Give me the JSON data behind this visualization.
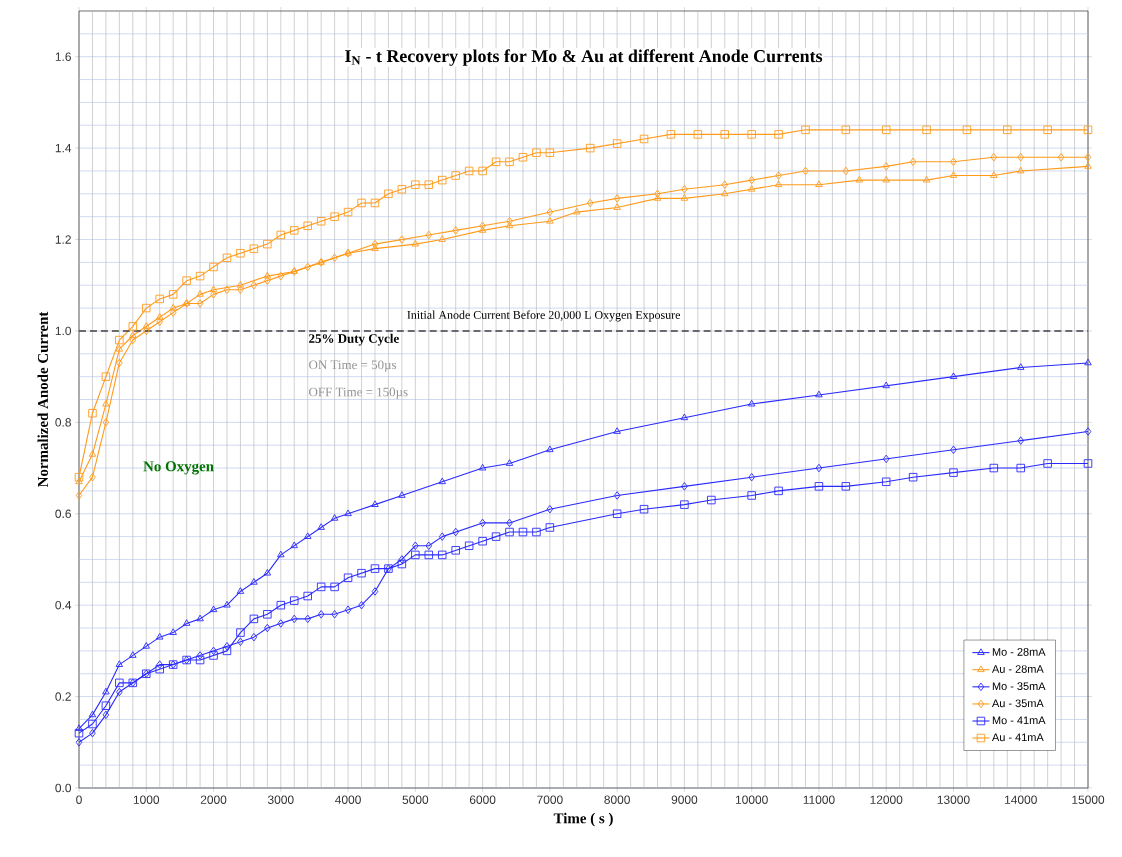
{
  "chart_data": {
    "type": "line",
    "title": "I$_{N}$ - t  Recovery plots for Mo & Au at different Anode Currents",
    "xlabel": "Time ( s )",
    "ylabel": "Normalized Anode Current",
    "xlim": [
      0,
      15000
    ],
    "ylim": [
      0,
      1.7
    ],
    "xticks": [
      0,
      {
        "value": 200,
        "label": null
      },
      {
        "value": 400,
        "label": null
      },
      {
        "value": 600,
        "label": null
      },
      {
        "value": 800,
        "label": null
      },
      1000,
      {
        "value": 1200,
        "label": null
      },
      {
        "value": 1400,
        "label": null
      },
      {
        "value": 1600,
        "label": null
      },
      {
        "value": 1800,
        "label": null
      },
      2000,
      {
        "value": 2200,
        "label": null
      },
      {
        "value": 2400,
        "label": null
      },
      {
        "value": 2600,
        "label": null
      },
      {
        "value": 2800,
        "label": null
      },
      3000,
      {
        "value": 3200,
        "label": null
      },
      {
        "value": 3400,
        "label": null
      },
      {
        "value": 3600,
        "label": null
      },
      {
        "value": 3800,
        "label": null
      },
      4000,
      {
        "value": 4200,
        "label": null
      },
      {
        "value": 4400,
        "label": null
      },
      {
        "value": 4600,
        "label": null
      },
      {
        "value": 4800,
        "label": null
      },
      5000,
      {
        "value": 5200,
        "label": null
      },
      {
        "value": 5400,
        "label": null
      },
      {
        "value": 5600,
        "label": null
      },
      {
        "value": 5800,
        "label": null
      },
      6000,
      {
        "value": 6200,
        "label": null
      },
      {
        "value": 6400,
        "label": null
      },
      {
        "value": 6600,
        "label": null
      },
      {
        "value": 6800,
        "label": null
      },
      7000,
      {
        "value": 7200,
        "label": null
      },
      {
        "value": 7400,
        "label": null
      },
      {
        "value": 7600,
        "label": null
      },
      {
        "value": 7800,
        "label": null
      },
      8000,
      {
        "value": 8200,
        "label": null
      },
      {
        "value": 8400,
        "label": null
      },
      {
        "value": 8600,
        "label": null
      },
      {
        "value": 8800,
        "label": null
      },
      9000,
      {
        "value": 9200,
        "label": null
      },
      {
        "value": 9400,
        "label": null
      },
      {
        "value": 9600,
        "label": null
      },
      {
        "value": 9800,
        "label": null
      },
      10000,
      {
        "value": 10200,
        "label": null
      },
      {
        "value": 10400,
        "label": null
      },
      {
        "value": 10600,
        "label": null
      },
      {
        "value": 10800,
        "label": null
      },
      11000,
      {
        "value": 11200,
        "label": null
      },
      {
        "value": 11400,
        "label": null
      },
      {
        "value": 11600,
        "label": null
      },
      {
        "value": 11800,
        "label": null
      },
      12000,
      {
        "value": 12200,
        "label": null
      },
      {
        "value": 12400,
        "label": null
      },
      {
        "value": 12600,
        "label": null
      },
      {
        "value": 12800,
        "label": null
      },
      13000,
      {
        "value": 13200,
        "label": null
      },
      {
        "value": 13400,
        "label": null
      },
      {
        "value": 13600,
        "label": null
      },
      {
        "value": 13800,
        "label": null
      },
      14000,
      {
        "value": 14200,
        "label": null
      },
      {
        "value": 14400,
        "label": null
      },
      {
        "value": 14600,
        "label": null
      },
      {
        "value": 14800,
        "label": null
      },
      15000
    ],
    "yticks": [
      {
        "value": 0,
        "label": "0.0"
      },
      {
        "value": 0.05,
        "label": null
      },
      {
        "value": 0.1,
        "label": null
      },
      {
        "value": 0.15,
        "label": null
      },
      0.2,
      {
        "value": 0.25,
        "label": null
      },
      {
        "value": 0.3,
        "label": null
      },
      {
        "value": 0.35,
        "label": null
      },
      0.4,
      {
        "value": 0.45,
        "label": null
      },
      {
        "value": 0.5,
        "label": null
      },
      {
        "value": 0.55,
        "label": null
      },
      0.6,
      {
        "value": 0.65,
        "label": null
      },
      {
        "value": 0.7,
        "label": null
      },
      {
        "value": 0.75,
        "label": null
      },
      0.8,
      {
        "value": 0.85,
        "label": null
      },
      {
        "value": 0.9,
        "label": null
      },
      {
        "value": 0.95,
        "label": null
      },
      {
        "value": 1,
        "label": "1.0"
      },
      {
        "value": 1.05,
        "label": null
      },
      {
        "value": 1.1,
        "label": null
      },
      {
        "value": 1.15,
        "label": null
      },
      1.2,
      {
        "value": 1.25,
        "label": null
      },
      {
        "value": 1.3,
        "label": null
      },
      {
        "value": 1.35,
        "label": null
      },
      1.4,
      {
        "value": 1.45,
        "label": null
      },
      {
        "value": 1.5,
        "label": null
      },
      {
        "value": 1.55,
        "label": null
      },
      1.6,
      {
        "value": 1.65,
        "label": null
      }
    ],
    "grid": true,
    "legend": "bottom right",
    "line_style": "solid",
    "ref_lines": [
      {
        "axis": "y",
        "value": 1,
        "label": "Initial  Anode  Current  Before  20,000 L  Oxygen  Exposure",
        "color": "#404040",
        "line_style": "dashed"
      }
    ],
    "annotations": [
      "25% Duty Cycle",
      "ON  Time = 50µs",
      "OFF Time = 150µs",
      "No Oxygen"
    ],
    "series": [
      {
        "name": "Mo - 28mA",
        "color": "#2a2aff",
        "marker": "triangle",
        "x": [
          0,
          200,
          400,
          600,
          800,
          1000,
          1200,
          1400,
          1600,
          1800,
          2000,
          2200,
          2400,
          2600,
          2800,
          3000,
          3200,
          3400,
          3600,
          3800,
          4000,
          4400,
          4800,
          5400,
          6000,
          6400,
          7000,
          8000,
          9000,
          10000,
          11000,
          12000,
          13000,
          14000,
          15000
        ],
        "values": [
          0.13,
          0.16,
          0.21,
          0.27,
          0.29,
          0.31,
          0.33,
          0.34,
          0.36,
          0.37,
          0.39,
          0.4,
          0.43,
          0.45,
          0.47,
          0.51,
          0.53,
          0.55,
          0.57,
          0.59,
          0.6,
          0.62,
          0.64,
          0.67,
          0.7,
          0.71,
          0.74,
          0.78,
          0.81,
          0.84,
          0.86,
          0.88,
          0.9,
          0.92,
          0.93
        ]
      },
      {
        "name": "Au - 28mA",
        "color": "#ff9a1a",
        "marker": "triangle",
        "x": [
          0,
          200,
          400,
          600,
          800,
          1000,
          1200,
          1400,
          1600,
          1800,
          2000,
          2400,
          2800,
          3200,
          3600,
          4000,
          4400,
          5000,
          5400,
          6000,
          6400,
          7000,
          7400,
          8000,
          8600,
          9000,
          9600,
          10000,
          10400,
          11000,
          11600,
          12000,
          12600,
          13000,
          13600,
          14000,
          15000
        ],
        "values": [
          0.67,
          0.73,
          0.84,
          0.96,
          0.99,
          1.01,
          1.03,
          1.05,
          1.06,
          1.08,
          1.09,
          1.1,
          1.12,
          1.13,
          1.15,
          1.17,
          1.18,
          1.19,
          1.2,
          1.22,
          1.23,
          1.24,
          1.26,
          1.27,
          1.29,
          1.29,
          1.3,
          1.31,
          1.32,
          1.32,
          1.33,
          1.33,
          1.33,
          1.34,
          1.34,
          1.35,
          1.36
        ]
      },
      {
        "name": "Mo - 35mA",
        "color": "#2a2aff",
        "marker": "diamond",
        "x": [
          0,
          200,
          400,
          600,
          800,
          1000,
          1200,
          1400,
          1600,
          1800,
          2000,
          2200,
          2400,
          2600,
          2800,
          3000,
          3200,
          3400,
          3600,
          3800,
          4000,
          4200,
          4400,
          4600,
          4800,
          5000,
          5200,
          5400,
          5600,
          6000,
          6400,
          7000,
          8000,
          9000,
          10000,
          11000,
          12000,
          13000,
          14000,
          15000
        ],
        "values": [
          0.1,
          0.12,
          0.16,
          0.21,
          0.23,
          0.25,
          0.27,
          0.27,
          0.28,
          0.29,
          0.3,
          0.31,
          0.32,
          0.33,
          0.35,
          0.36,
          0.37,
          0.37,
          0.38,
          0.38,
          0.39,
          0.4,
          0.43,
          0.48,
          0.5,
          0.53,
          0.53,
          0.55,
          0.56,
          0.58,
          0.58,
          0.61,
          0.64,
          0.66,
          0.68,
          0.7,
          0.72,
          0.74,
          0.76,
          0.78
        ]
      },
      {
        "name": "Au - 35mA",
        "color": "#ff9a1a",
        "marker": "diamond",
        "x": [
          0,
          200,
          400,
          600,
          800,
          1000,
          1200,
          1400,
          1600,
          1800,
          2000,
          2200,
          2400,
          2600,
          2800,
          3000,
          3200,
          3400,
          3600,
          3800,
          4000,
          4400,
          4800,
          5200,
          5600,
          6000,
          6400,
          7000,
          7600,
          8000,
          8600,
          9000,
          9600,
          10000,
          10400,
          10800,
          11400,
          12000,
          12400,
          13000,
          13600,
          14000,
          14600,
          15000
        ],
        "values": [
          0.64,
          0.68,
          0.8,
          0.93,
          0.98,
          1.0,
          1.02,
          1.04,
          1.06,
          1.06,
          1.08,
          1.09,
          1.09,
          1.1,
          1.11,
          1.12,
          1.13,
          1.14,
          1.15,
          1.16,
          1.17,
          1.19,
          1.2,
          1.21,
          1.22,
          1.23,
          1.24,
          1.26,
          1.28,
          1.29,
          1.3,
          1.31,
          1.32,
          1.33,
          1.34,
          1.35,
          1.35,
          1.36,
          1.37,
          1.37,
          1.38,
          1.38,
          1.38,
          1.38
        ]
      },
      {
        "name": "Mo - 41mA",
        "color": "#2a2aff",
        "marker": "square",
        "x": [
          0,
          200,
          400,
          600,
          800,
          1000,
          1200,
          1400,
          1600,
          1800,
          2000,
          2200,
          2400,
          2600,
          2800,
          3000,
          3200,
          3400,
          3600,
          3800,
          4000,
          4200,
          4400,
          4600,
          4800,
          5000,
          5200,
          5400,
          5600,
          5800,
          6000,
          6200,
          6400,
          6600,
          6800,
          7000,
          8000,
          8400,
          9000,
          9400,
          10000,
          10400,
          11000,
          11400,
          12000,
          12400,
          13000,
          13600,
          14000,
          14400,
          15000
        ],
        "values": [
          0.12,
          0.14,
          0.18,
          0.23,
          0.23,
          0.25,
          0.26,
          0.27,
          0.28,
          0.28,
          0.29,
          0.3,
          0.34,
          0.37,
          0.38,
          0.4,
          0.41,
          0.42,
          0.44,
          0.44,
          0.46,
          0.47,
          0.48,
          0.48,
          0.49,
          0.51,
          0.51,
          0.51,
          0.52,
          0.53,
          0.54,
          0.55,
          0.56,
          0.56,
          0.56,
          0.57,
          0.6,
          0.61,
          0.62,
          0.63,
          0.64,
          0.65,
          0.66,
          0.66,
          0.67,
          0.68,
          0.69,
          0.7,
          0.7,
          0.71,
          0.71
        ]
      },
      {
        "name": "Au - 41mA",
        "color": "#ff9a1a",
        "marker": "square",
        "x": [
          0,
          200,
          400,
          600,
          800,
          1000,
          1200,
          1400,
          1600,
          1800,
          2000,
          2200,
          2400,
          2600,
          2800,
          3000,
          3200,
          3400,
          3600,
          3800,
          4000,
          4200,
          4400,
          4600,
          4800,
          5000,
          5200,
          5400,
          5600,
          5800,
          6000,
          6200,
          6400,
          6600,
          6800,
          7000,
          7600,
          8000,
          8400,
          8800,
          9200,
          9600,
          10000,
          10400,
          10800,
          11400,
          12000,
          12600,
          13200,
          13800,
          14400,
          15000
        ],
        "values": [
          0.68,
          0.82,
          0.9,
          0.98,
          1.01,
          1.05,
          1.07,
          1.08,
          1.11,
          1.12,
          1.14,
          1.16,
          1.17,
          1.18,
          1.19,
          1.21,
          1.22,
          1.23,
          1.24,
          1.25,
          1.26,
          1.28,
          1.28,
          1.3,
          1.31,
          1.32,
          1.32,
          1.33,
          1.34,
          1.35,
          1.35,
          1.37,
          1.37,
          1.38,
          1.39,
          1.39,
          1.4,
          1.41,
          1.42,
          1.43,
          1.43,
          1.43,
          1.43,
          1.43,
          1.44,
          1.44,
          1.44,
          1.44,
          1.44,
          1.44,
          1.44,
          1.44
        ]
      }
    ]
  }
}
